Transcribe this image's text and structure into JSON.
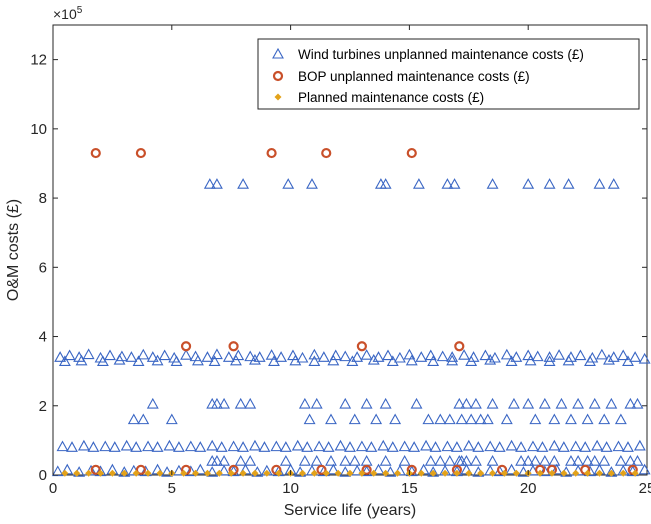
{
  "chart_data": {
    "type": "scatter",
    "title": "",
    "xlabel": "Service life (years)",
    "ylabel": "O&M costs (£)",
    "xlim": [
      0,
      25
    ],
    "ylim": [
      0,
      1300000
    ],
    "y_scale_multiplier_label": "×10",
    "y_scale_exponent": "5",
    "x_ticks": [
      0,
      5,
      10,
      15,
      20,
      25
    ],
    "y_ticks": [
      0,
      200000,
      400000,
      600000,
      800000,
      1000000,
      1200000
    ],
    "y_tick_labels": [
      "0",
      "2",
      "4",
      "6",
      "8",
      "10",
      "12"
    ],
    "x_tick_labels": [
      "0",
      "5",
      "10",
      "15",
      "20",
      "25"
    ],
    "legend_position": "top-right",
    "grid": false,
    "series": [
      {
        "name": "Wind turbines unplanned maintenance costs (£)",
        "marker": "triangle",
        "color": "#3a66c4",
        "x": [
          0.3,
          0.7,
          1.1,
          1.5,
          2.0,
          2.4,
          2.9,
          3.3,
          3.8,
          4.2,
          4.7,
          5.1,
          5.6,
          6.0,
          6.5,
          6.9,
          7.4,
          7.8,
          8.3,
          8.7,
          9.2,
          9.6,
          10.1,
          10.5,
          11.0,
          11.4,
          11.9,
          12.3,
          12.8,
          13.2,
          13.7,
          14.1,
          14.6,
          15.0,
          15.5,
          15.9,
          16.4,
          16.8,
          17.3,
          17.7,
          18.2,
          18.6,
          19.1,
          19.5,
          20.0,
          20.4,
          20.9,
          21.3,
          21.8,
          22.2,
          22.7,
          23.1,
          23.6,
          24.0,
          24.5,
          24.9,
          0.5,
          1.2,
          2.1,
          2.8,
          3.6,
          4.4,
          5.2,
          6.1,
          6.8,
          7.7,
          8.5,
          9.3,
          10.2,
          11.0,
          11.8,
          12.6,
          13.5,
          14.3,
          15.1,
          16.0,
          16.8,
          17.6,
          18.4,
          19.3,
          20.1,
          20.9,
          21.7,
          22.6,
          23.4,
          24.2,
          0.4,
          0.8,
          1.3,
          1.7,
          2.2,
          2.6,
          3.1,
          3.5,
          4.0,
          4.4,
          4.9,
          5.3,
          5.8,
          6.2,
          6.7,
          7.1,
          7.6,
          8.0,
          8.5,
          8.9,
          9.4,
          9.8,
          10.3,
          10.7,
          11.2,
          11.6,
          12.1,
          12.5,
          13.0,
          13.4,
          13.9,
          14.3,
          14.8,
          15.2,
          15.7,
          16.1,
          16.6,
          17.0,
          17.5,
          17.9,
          18.4,
          18.8,
          19.3,
          19.7,
          20.2,
          20.6,
          21.1,
          21.5,
          22.0,
          22.4,
          22.9,
          23.3,
          23.8,
          24.2,
          24.7,
          3.4,
          3.8,
          4.2,
          5.0,
          6.7,
          6.9,
          7.2,
          7.9,
          8.3,
          10.6,
          10.8,
          11.1,
          11.7,
          12.3,
          12.7,
          13.2,
          13.6,
          14.0,
          14.4,
          15.3,
          15.8,
          16.3,
          16.7,
          17.1,
          17.2,
          17.4,
          17.6,
          17.8,
          18.0,
          18.3,
          18.5,
          19.1,
          19.4,
          20.0,
          20.3,
          20.7,
          21.1,
          21.4,
          21.8,
          22.1,
          22.5,
          22.8,
          23.2,
          23.5,
          23.9,
          24.3,
          24.6,
          6.7,
          6.9,
          7.2,
          7.9,
          8.3,
          9.8,
          10.6,
          11.1,
          11.7,
          12.3,
          12.7,
          13.2,
          14.0,
          14.8,
          15.9,
          16.3,
          16.7,
          17.1,
          17.2,
          17.4,
          17.8,
          18.5,
          19.7,
          20.0,
          20.3,
          20.7,
          21.1,
          21.8,
          22.1,
          22.5,
          22.8,
          23.2,
          23.9,
          24.3,
          24.6,
          6.6,
          6.9,
          8.0,
          9.9,
          10.9,
          13.8,
          14.0,
          15.4,
          16.6,
          16.9,
          18.5,
          20.0,
          20.9,
          21.7,
          23.0,
          23.6,
          0.2,
          0.6,
          1.1,
          1.6,
          2.0,
          2.5,
          3.0,
          3.4,
          3.9,
          4.4,
          4.8,
          5.3,
          5.8,
          6.2,
          6.7,
          7.2,
          7.6,
          8.1,
          8.6,
          9.0,
          9.5,
          10.0,
          10.4,
          10.9,
          11.4,
          11.8,
          12.3,
          12.8,
          13.2,
          13.7,
          14.2,
          14.6,
          15.1,
          15.6,
          16.0,
          16.5,
          17.0,
          17.4,
          17.9,
          18.4,
          18.8,
          19.3,
          19.8,
          20.2,
          20.7,
          21.2,
          21.6,
          22.1,
          22.6,
          23.0,
          23.5,
          24.0,
          24.4,
          24.9
        ],
        "y": [
          340000,
          345000,
          340000,
          348000,
          338000,
          345000,
          342000,
          340000,
          347000,
          340000,
          345000,
          338000,
          346000,
          342000,
          340000,
          348000,
          340000,
          345000,
          342000,
          340000,
          346000,
          340000,
          345000,
          338000,
          347000,
          340000,
          345000,
          342000,
          340000,
          346000,
          340000,
          345000,
          338000,
          347000,
          340000,
          345000,
          342000,
          340000,
          346000,
          340000,
          345000,
          338000,
          347000,
          340000,
          345000,
          342000,
          340000,
          346000,
          340000,
          345000,
          338000,
          347000,
          340000,
          345000,
          340000,
          335000,
          328000,
          330000,
          328000,
          332000,
          328000,
          330000,
          328000,
          330000,
          328000,
          330000,
          332000,
          328000,
          330000,
          328000,
          330000,
          328000,
          332000,
          328000,
          330000,
          328000,
          330000,
          328000,
          332000,
          328000,
          330000,
          328000,
          330000,
          328000,
          332000,
          328000,
          82000,
          80000,
          84000,
          80000,
          82000,
          80000,
          84000,
          80000,
          82000,
          80000,
          84000,
          80000,
          82000,
          80000,
          84000,
          80000,
          82000,
          80000,
          84000,
          80000,
          82000,
          80000,
          84000,
          80000,
          82000,
          80000,
          84000,
          80000,
          82000,
          80000,
          84000,
          80000,
          82000,
          80000,
          84000,
          80000,
          82000,
          80000,
          84000,
          80000,
          82000,
          80000,
          84000,
          80000,
          82000,
          80000,
          84000,
          80000,
          82000,
          80000,
          84000,
          80000,
          82000,
          80000,
          84000,
          160000,
          160000,
          205000,
          160000,
          205000,
          205000,
          205000,
          205000,
          205000,
          205000,
          160000,
          205000,
          160000,
          205000,
          160000,
          205000,
          160000,
          205000,
          160000,
          205000,
          160000,
          160000,
          160000,
          205000,
          160000,
          205000,
          160000,
          205000,
          160000,
          160000,
          205000,
          160000,
          205000,
          205000,
          160000,
          205000,
          160000,
          205000,
          160000,
          205000,
          160000,
          205000,
          160000,
          205000,
          160000,
          205000,
          205000,
          40000,
          40000,
          40000,
          40000,
          40000,
          40000,
          40000,
          40000,
          40000,
          40000,
          40000,
          40000,
          40000,
          40000,
          40000,
          40000,
          40000,
          40000,
          40000,
          40000,
          40000,
          40000,
          40000,
          40000,
          40000,
          40000,
          40000,
          40000,
          40000,
          40000,
          40000,
          40000,
          40000,
          40000,
          40000,
          840000,
          840000,
          840000,
          840000,
          840000,
          840000,
          840000,
          840000,
          840000,
          840000,
          840000,
          840000,
          840000,
          840000,
          840000,
          840000,
          10000,
          15000,
          8000,
          12000,
          10000,
          15000,
          8000,
          12000,
          10000,
          15000,
          8000,
          12000,
          10000,
          15000,
          8000,
          12000,
          10000,
          15000,
          8000,
          12000,
          10000,
          15000,
          8000,
          12000,
          10000,
          15000,
          8000,
          12000,
          10000,
          15000,
          8000,
          12000,
          10000,
          15000,
          8000,
          12000,
          10000,
          15000,
          8000,
          12000,
          10000,
          15000,
          8000,
          12000,
          10000,
          15000,
          8000,
          12000,
          10000,
          15000,
          8000,
          12000,
          10000,
          15000
        ]
      },
      {
        "name": "BOP unplanned maintenance costs (£)",
        "marker": "circle",
        "color": "#c9502a",
        "x": [
          1.8,
          3.7,
          9.2,
          11.5,
          15.1,
          5.6,
          7.6,
          13.0,
          17.1,
          1.8,
          3.7,
          5.6,
          7.6,
          9.4,
          11.3,
          13.2,
          15.1,
          17.0,
          18.9,
          20.5,
          21.0,
          22.4,
          24.4
        ],
        "y": [
          930000,
          930000,
          930000,
          930000,
          930000,
          372000,
          372000,
          372000,
          372000,
          15000,
          15000,
          15000,
          15000,
          15000,
          15000,
          15000,
          15000,
          15000,
          15000,
          15000,
          15000,
          15000,
          15000
        ]
      },
      {
        "name": "Planned maintenance costs (£)",
        "marker": "dot",
        "color": "#e3a21a",
        "x": [
          0.5,
          1.0,
          1.5,
          2.0,
          2.5,
          3.0,
          3.5,
          4.0,
          4.5,
          5.0,
          5.5,
          6.0,
          6.5,
          7.0,
          7.5,
          8.0,
          8.5,
          9.0,
          9.5,
          10.0,
          10.5,
          11.0,
          11.5,
          12.0,
          12.5,
          13.0,
          13.5,
          14.0,
          14.5,
          15.0,
          15.5,
          16.0,
          16.5,
          17.0,
          17.5,
          18.0,
          18.5,
          19.0,
          19.5,
          20.0,
          20.5,
          21.0,
          21.5,
          22.0,
          22.5,
          23.0,
          23.5,
          24.0,
          24.5
        ],
        "y": [
          5000,
          5000,
          5000,
          5000,
          5000,
          5000,
          5000,
          5000,
          5000,
          5000,
          5000,
          5000,
          5000,
          5000,
          5000,
          5000,
          5000,
          5000,
          5000,
          5000,
          5000,
          5000,
          5000,
          5000,
          5000,
          5000,
          5000,
          5000,
          5000,
          5000,
          5000,
          5000,
          5000,
          5000,
          5000,
          5000,
          5000,
          5000,
          5000,
          5000,
          5000,
          5000,
          5000,
          5000,
          5000,
          5000,
          5000,
          5000,
          5000
        ]
      }
    ]
  }
}
